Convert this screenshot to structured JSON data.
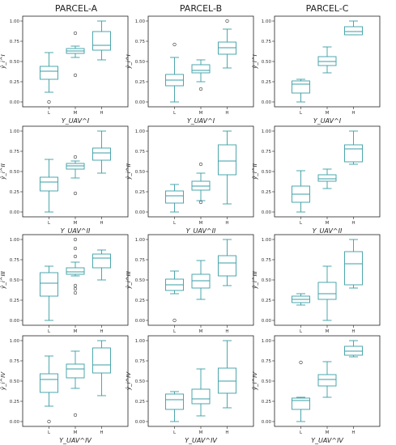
{
  "columns": [
    "PARCEL-A",
    "PARCEL-B",
    "PARCEL-C"
  ],
  "row_labels": {
    "ylabels": [
      "ŷ_i^I",
      "ŷ_i^II",
      "ŷ_i^III",
      "ŷ_i^IV"
    ],
    "xlabels": [
      "Y_UAV^I",
      "Y_UAV^II",
      "Y_UAV^III",
      "Y_UAV^IV"
    ]
  },
  "colors": {
    "box": "#3a9ea5",
    "median": "#3a9ea5",
    "frame": "#222222"
  },
  "chart_data": [
    {
      "type": "box",
      "title": "PARCEL-A",
      "row": 0,
      "col": 0,
      "categories": [
        "L",
        "M",
        "H"
      ],
      "ylim": [
        0,
        1
      ],
      "yticks": [
        "0.00",
        "0.25",
        "0.50",
        "0.75",
        "1.00"
      ],
      "boxes": [
        {
          "whislo": 0.12,
          "q1": 0.28,
          "med": 0.38,
          "q3": 0.44,
          "whishi": 0.61,
          "fliers": [
            0.0
          ]
        },
        {
          "whislo": 0.55,
          "q1": 0.6,
          "med": 0.63,
          "q3": 0.66,
          "whishi": 0.69,
          "fliers": [
            0.85,
            0.33
          ]
        },
        {
          "whislo": 0.52,
          "q1": 0.64,
          "med": 0.7,
          "q3": 0.87,
          "whishi": 1.0,
          "fliers": []
        }
      ]
    },
    {
      "type": "box",
      "title": "PARCEL-B",
      "row": 0,
      "col": 1,
      "categories": [
        "L",
        "M",
        "H"
      ],
      "ylim": [
        0,
        1
      ],
      "yticks": [
        "0.00",
        "0.25",
        "0.50",
        "0.75",
        "1.00"
      ],
      "boxes": [
        {
          "whislo": 0.0,
          "q1": 0.2,
          "med": 0.27,
          "q3": 0.34,
          "whishi": 0.55,
          "fliers": [
            0.71
          ]
        },
        {
          "whislo": 0.25,
          "q1": 0.36,
          "med": 0.39,
          "q3": 0.46,
          "whishi": 0.52,
          "fliers": [
            0.16
          ]
        },
        {
          "whislo": 0.42,
          "q1": 0.59,
          "med": 0.67,
          "q3": 0.74,
          "whishi": 0.9,
          "fliers": [
            1.0
          ]
        }
      ]
    },
    {
      "type": "box",
      "title": "PARCEL-C",
      "row": 0,
      "col": 2,
      "categories": [
        "L",
        "M",
        "H"
      ],
      "ylim": [
        0,
        1
      ],
      "yticks": [
        "0.00",
        "0.25",
        "0.50",
        "0.75",
        "1.00"
      ],
      "boxes": [
        {
          "whislo": 0.0,
          "q1": 0.11,
          "med": 0.22,
          "q3": 0.26,
          "whishi": 0.28,
          "fliers": []
        },
        {
          "whislo": 0.36,
          "q1": 0.45,
          "med": 0.5,
          "q3": 0.56,
          "whishi": 0.68,
          "fliers": []
        },
        {
          "whislo": 0.83,
          "q1": 0.83,
          "med": 0.87,
          "q3": 0.93,
          "whishi": 1.0,
          "fliers": []
        }
      ]
    },
    {
      "type": "box",
      "row": 1,
      "col": 0,
      "categories": [
        "L",
        "M",
        "H"
      ],
      "ylim": [
        0,
        1
      ],
      "yticks": [
        "0.00",
        "0.25",
        "0.50",
        "0.75",
        "1.00"
      ],
      "boxes": [
        {
          "whislo": 0.0,
          "q1": 0.26,
          "med": 0.37,
          "q3": 0.43,
          "whishi": 0.65,
          "fliers": []
        },
        {
          "whislo": 0.42,
          "q1": 0.53,
          "med": 0.57,
          "q3": 0.6,
          "whishi": 0.63,
          "fliers": [
            0.68,
            0.23
          ]
        },
        {
          "whislo": 0.48,
          "q1": 0.64,
          "med": 0.73,
          "q3": 0.79,
          "whishi": 1.0,
          "fliers": []
        }
      ]
    },
    {
      "type": "box",
      "row": 1,
      "col": 1,
      "categories": [
        "L",
        "M",
        "H"
      ],
      "ylim": [
        0,
        1
      ],
      "yticks": [
        "0.00",
        "0.25",
        "0.50",
        "0.75",
        "1.00"
      ],
      "boxes": [
        {
          "whislo": 0.0,
          "q1": 0.11,
          "med": 0.2,
          "q3": 0.26,
          "whishi": 0.34,
          "fliers": []
        },
        {
          "whislo": 0.14,
          "q1": 0.27,
          "med": 0.32,
          "q3": 0.38,
          "whishi": 0.48,
          "fliers": [
            0.59,
            0.12
          ]
        },
        {
          "whislo": 0.1,
          "q1": 0.46,
          "med": 0.63,
          "q3": 0.83,
          "whishi": 1.0,
          "fliers": []
        }
      ]
    },
    {
      "type": "box",
      "row": 1,
      "col": 2,
      "categories": [
        "L",
        "M",
        "H"
      ],
      "ylim": [
        0,
        1
      ],
      "yticks": [
        "0.00",
        "0.25",
        "0.50",
        "0.75",
        "1.00"
      ],
      "boxes": [
        {
          "whislo": 0.0,
          "q1": 0.12,
          "med": 0.22,
          "q3": 0.32,
          "whishi": 0.51,
          "fliers": []
        },
        {
          "whislo": 0.29,
          "q1": 0.38,
          "med": 0.41,
          "q3": 0.46,
          "whishi": 0.53,
          "fliers": []
        },
        {
          "whislo": 0.59,
          "q1": 0.62,
          "med": 0.78,
          "q3": 0.83,
          "whishi": 1.0,
          "fliers": []
        }
      ]
    },
    {
      "type": "box",
      "row": 2,
      "col": 0,
      "categories": [
        "L",
        "M",
        "H"
      ],
      "ylim": [
        0,
        1
      ],
      "yticks": [
        "0.00",
        "0.25",
        "0.50",
        "0.75",
        "1.00"
      ],
      "boxes": [
        {
          "whislo": 0.0,
          "q1": 0.3,
          "med": 0.46,
          "q3": 0.59,
          "whishi": 0.67,
          "fliers": []
        },
        {
          "whislo": 0.55,
          "q1": 0.57,
          "med": 0.6,
          "q3": 0.65,
          "whishi": 0.72,
          "fliers": [
            1.0,
            0.89,
            0.79,
            0.43,
            0.39,
            0.34
          ]
        },
        {
          "whislo": 0.5,
          "q1": 0.65,
          "med": 0.77,
          "q3": 0.82,
          "whishi": 0.87,
          "fliers": []
        }
      ]
    },
    {
      "type": "box",
      "row": 2,
      "col": 1,
      "categories": [
        "L",
        "M",
        "H"
      ],
      "ylim": [
        0,
        1
      ],
      "yticks": [
        "0.00",
        "0.25",
        "0.50",
        "0.75",
        "1.00"
      ],
      "boxes": [
        {
          "whislo": 0.33,
          "q1": 0.37,
          "med": 0.44,
          "q3": 0.51,
          "whishi": 0.61,
          "fliers": [
            0.0
          ]
        },
        {
          "whislo": 0.26,
          "q1": 0.4,
          "med": 0.49,
          "q3": 0.57,
          "whishi": 0.74,
          "fliers": []
        },
        {
          "whislo": 0.43,
          "q1": 0.55,
          "med": 0.71,
          "q3": 0.8,
          "whishi": 1.0,
          "fliers": []
        }
      ]
    },
    {
      "type": "box",
      "row": 2,
      "col": 2,
      "categories": [
        "L",
        "M",
        "H"
      ],
      "ylim": [
        0,
        1
      ],
      "yticks": [
        "0.00",
        "0.25",
        "0.50",
        "0.75",
        "1.00"
      ],
      "boxes": [
        {
          "whislo": 0.19,
          "q1": 0.22,
          "med": 0.26,
          "q3": 0.3,
          "whishi": 0.33,
          "fliers": []
        },
        {
          "whislo": 0.0,
          "q1": 0.26,
          "med": 0.33,
          "q3": 0.47,
          "whishi": 0.67,
          "fliers": []
        },
        {
          "whislo": 0.4,
          "q1": 0.44,
          "med": 0.7,
          "q3": 0.85,
          "whishi": 1.0,
          "fliers": []
        }
      ]
    },
    {
      "type": "box",
      "row": 3,
      "col": 0,
      "categories": [
        "L",
        "M",
        "H"
      ],
      "ylim": [
        0,
        1
      ],
      "yticks": [
        "0.00",
        "0.25",
        "0.50",
        "0.75",
        "1.00"
      ],
      "boxes": [
        {
          "whislo": 0.19,
          "q1": 0.36,
          "med": 0.52,
          "q3": 0.59,
          "whishi": 0.81,
          "fliers": [
            0.0
          ]
        },
        {
          "whislo": 0.41,
          "q1": 0.54,
          "med": 0.65,
          "q3": 0.71,
          "whishi": 0.87,
          "fliers": [
            0.08
          ]
        },
        {
          "whislo": 0.32,
          "q1": 0.6,
          "med": 0.7,
          "q3": 0.91,
          "whishi": 1.0,
          "fliers": []
        }
      ]
    },
    {
      "type": "box",
      "row": 3,
      "col": 1,
      "categories": [
        "L",
        "M",
        "H"
      ],
      "ylim": [
        0,
        1
      ],
      "yticks": [
        "0.00",
        "0.25",
        "0.50",
        "0.75",
        "1.00"
      ],
      "boxes": [
        {
          "whislo": 0.0,
          "q1": 0.15,
          "med": 0.27,
          "q3": 0.34,
          "whishi": 0.37,
          "fliers": []
        },
        {
          "whislo": 0.07,
          "q1": 0.22,
          "med": 0.28,
          "q3": 0.4,
          "whishi": 0.65,
          "fliers": []
        },
        {
          "whislo": 0.17,
          "q1": 0.35,
          "med": 0.5,
          "q3": 0.66,
          "whishi": 1.0,
          "fliers": []
        }
      ]
    },
    {
      "type": "box",
      "row": 3,
      "col": 2,
      "categories": [
        "L",
        "M",
        "H"
      ],
      "ylim": [
        0,
        1
      ],
      "yticks": [
        "0.00",
        "0.25",
        "0.50",
        "0.75",
        "1.00"
      ],
      "boxes": [
        {
          "whislo": 0.0,
          "q1": 0.15,
          "med": 0.26,
          "q3": 0.29,
          "whishi": 0.3,
          "fliers": [
            0.73
          ]
        },
        {
          "whislo": 0.3,
          "q1": 0.44,
          "med": 0.52,
          "q3": 0.58,
          "whishi": 0.74,
          "fliers": []
        },
        {
          "whislo": 0.8,
          "q1": 0.82,
          "med": 0.87,
          "q3": 0.93,
          "whishi": 1.0,
          "fliers": []
        }
      ]
    }
  ]
}
